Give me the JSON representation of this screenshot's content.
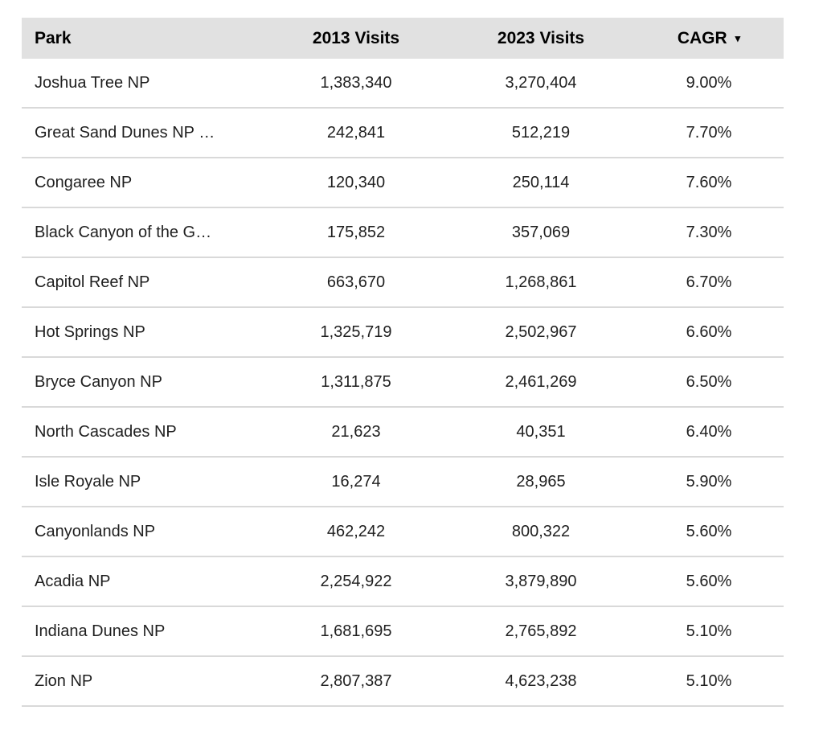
{
  "colors": {
    "header_bg": "#e1e1e1",
    "row_divider": "#d9d9d9",
    "text": "#1f1f1f"
  },
  "chart_data": {
    "type": "table",
    "title": "",
    "columns": [
      "Park",
      "2013 Visits",
      "2023 Visits",
      "CAGR"
    ],
    "sort": {
      "column": "CAGR",
      "direction": "desc",
      "indicator": "▾"
    },
    "rows": [
      {
        "park": "Joshua Tree NP",
        "visits_2013": "1,383,340",
        "visits_2023": "3,270,404",
        "cagr": "9.00%"
      },
      {
        "park": "Great Sand Dunes NP …",
        "visits_2013": "242,841",
        "visits_2023": "512,219",
        "cagr": "7.70%"
      },
      {
        "park": "Congaree NP",
        "visits_2013": "120,340",
        "visits_2023": "250,114",
        "cagr": "7.60%"
      },
      {
        "park": "Black Canyon of the G…",
        "visits_2013": "175,852",
        "visits_2023": "357,069",
        "cagr": "7.30%"
      },
      {
        "park": "Capitol Reef NP",
        "visits_2013": "663,670",
        "visits_2023": "1,268,861",
        "cagr": "6.70%"
      },
      {
        "park": "Hot Springs NP",
        "visits_2013": "1,325,719",
        "visits_2023": "2,502,967",
        "cagr": "6.60%"
      },
      {
        "park": "Bryce Canyon NP",
        "visits_2013": "1,311,875",
        "visits_2023": "2,461,269",
        "cagr": "6.50%"
      },
      {
        "park": "North Cascades NP",
        "visits_2013": "21,623",
        "visits_2023": "40,351",
        "cagr": "6.40%"
      },
      {
        "park": "Isle Royale NP",
        "visits_2013": "16,274",
        "visits_2023": "28,965",
        "cagr": "5.90%"
      },
      {
        "park": "Canyonlands NP",
        "visits_2013": "462,242",
        "visits_2023": "800,322",
        "cagr": "5.60%"
      },
      {
        "park": "Acadia NP",
        "visits_2013": "2,254,922",
        "visits_2023": "3,879,890",
        "cagr": "5.60%"
      },
      {
        "park": "Indiana Dunes NP",
        "visits_2013": "1,681,695",
        "visits_2023": "2,765,892",
        "cagr": "5.10%"
      },
      {
        "park": "Zion NP",
        "visits_2013": "2,807,387",
        "visits_2023": "4,623,238",
        "cagr": "5.10%"
      }
    ]
  }
}
